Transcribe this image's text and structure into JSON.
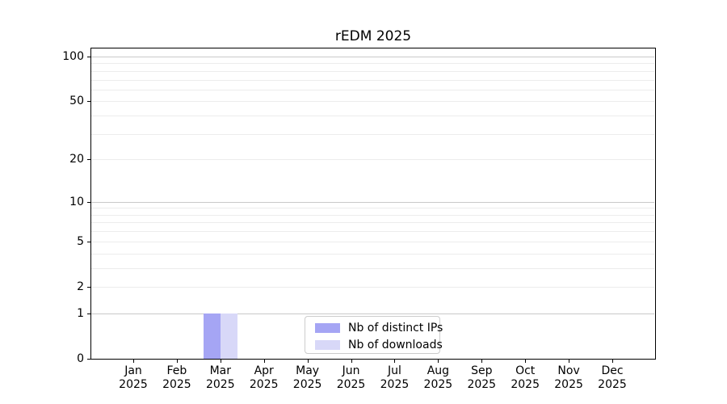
{
  "chart_data": {
    "type": "bar",
    "title": "rEDM 2025",
    "categories": [
      "Jan 2025",
      "Feb 2025",
      "Mar 2025",
      "Apr 2025",
      "May 2025",
      "Jun 2025",
      "Jul 2025",
      "Aug 2025",
      "Sep 2025",
      "Oct 2025",
      "Nov 2025",
      "Dec 2025"
    ],
    "series": [
      {
        "name": "Nb of distinct IPs",
        "color": "#a5a5f4",
        "values": [
          0,
          0,
          1,
          0,
          0,
          0,
          0,
          0,
          0,
          0,
          0,
          0
        ]
      },
      {
        "name": "Nb of downloads",
        "color": "#d8d8f8",
        "values": [
          0,
          0,
          1,
          0,
          0,
          0,
          0,
          0,
          0,
          0,
          0,
          0
        ]
      }
    ],
    "xlabel": "",
    "ylabel": "",
    "y_scale": "log1p",
    "ylim": [
      0,
      100
    ],
    "y_ticks": [
      0,
      1,
      2,
      5,
      10,
      20,
      50,
      100
    ],
    "y_minor_gridlines": [
      3,
      4,
      6,
      7,
      8,
      9,
      30,
      40,
      60,
      70,
      80,
      90
    ],
    "grid": "horizontal",
    "legend_position": "bottom-center",
    "colors": {
      "axis": "#000000",
      "gridline_major": "#c9c9c9",
      "gridline_minor": "#ececec",
      "legend_border": "#cccccc"
    }
  }
}
